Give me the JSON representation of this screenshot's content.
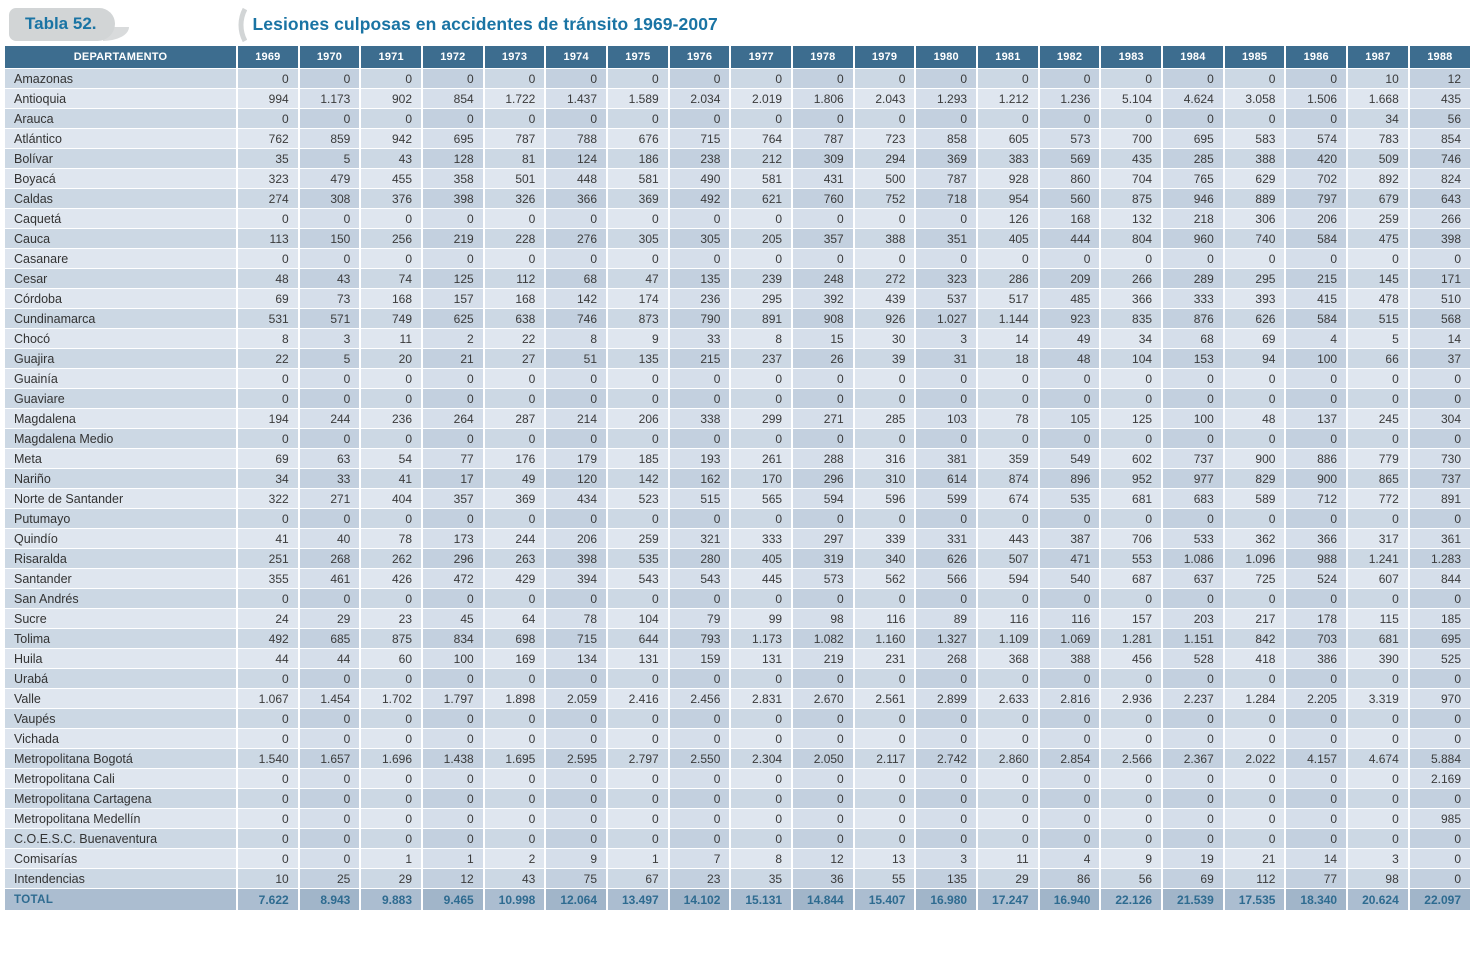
{
  "title": {
    "badge": "Tabla 52.",
    "text": "Lesiones culposas en accidentes de tránsito 1969-2007"
  },
  "colors": {
    "title_color": "#1a74a4",
    "badge_bg": "#d2d5d6",
    "header_bg": "#3d6d8f",
    "row_dark": "#ccd8e4",
    "row_dark_alt": "#c3d0df",
    "row_light": "#dfe6ef",
    "row_light_alt": "#d5deea",
    "total_bg": "#abbdd0",
    "total_bg_alt": "#a1b5c9",
    "total_text": "#2e6b90"
  },
  "table": {
    "department_header": "DEPARTAMENTO",
    "years": [
      "1969",
      "1970",
      "1971",
      "1972",
      "1973",
      "1974",
      "1975",
      "1976",
      "1977",
      "1978",
      "1979",
      "1980",
      "1981",
      "1982",
      "1983",
      "1984",
      "1985",
      "1986",
      "1987",
      "1988"
    ],
    "rows": [
      {
        "name": "Amazonas",
        "values": [
          "0",
          "0",
          "0",
          "0",
          "0",
          "0",
          "0",
          "0",
          "0",
          "0",
          "0",
          "0",
          "0",
          "0",
          "0",
          "0",
          "0",
          "0",
          "10",
          "12"
        ]
      },
      {
        "name": "Antioquia",
        "values": [
          "994",
          "1.173",
          "902",
          "854",
          "1.722",
          "1.437",
          "1.589",
          "2.034",
          "2.019",
          "1.806",
          "2.043",
          "1.293",
          "1.212",
          "1.236",
          "5.104",
          "4.624",
          "3.058",
          "1.506",
          "1.668",
          "435"
        ]
      },
      {
        "name": "Arauca",
        "values": [
          "0",
          "0",
          "0",
          "0",
          "0",
          "0",
          "0",
          "0",
          "0",
          "0",
          "0",
          "0",
          "0",
          "0",
          "0",
          "0",
          "0",
          "0",
          "34",
          "56"
        ]
      },
      {
        "name": "Atlántico",
        "values": [
          "762",
          "859",
          "942",
          "695",
          "787",
          "788",
          "676",
          "715",
          "764",
          "787",
          "723",
          "858",
          "605",
          "573",
          "700",
          "695",
          "583",
          "574",
          "783",
          "854"
        ]
      },
      {
        "name": "Bolívar",
        "values": [
          "35",
          "5",
          "43",
          "128",
          "81",
          "124",
          "186",
          "238",
          "212",
          "309",
          "294",
          "369",
          "383",
          "569",
          "435",
          "285",
          "388",
          "420",
          "509",
          "746"
        ]
      },
      {
        "name": "Boyacá",
        "values": [
          "323",
          "479",
          "455",
          "358",
          "501",
          "448",
          "581",
          "490",
          "581",
          "431",
          "500",
          "787",
          "928",
          "860",
          "704",
          "765",
          "629",
          "702",
          "892",
          "824"
        ]
      },
      {
        "name": "Caldas",
        "values": [
          "274",
          "308",
          "376",
          "398",
          "326",
          "366",
          "369",
          "492",
          "621",
          "760",
          "752",
          "718",
          "954",
          "560",
          "875",
          "946",
          "889",
          "797",
          "679",
          "643"
        ]
      },
      {
        "name": "Caquetá",
        "values": [
          "0",
          "0",
          "0",
          "0",
          "0",
          "0",
          "0",
          "0",
          "0",
          "0",
          "0",
          "0",
          "126",
          "168",
          "132",
          "218",
          "306",
          "206",
          "259",
          "266"
        ]
      },
      {
        "name": "Cauca",
        "values": [
          "113",
          "150",
          "256",
          "219",
          "228",
          "276",
          "305",
          "305",
          "205",
          "357",
          "388",
          "351",
          "405",
          "444",
          "804",
          "960",
          "740",
          "584",
          "475",
          "398"
        ]
      },
      {
        "name": "Casanare",
        "values": [
          "0",
          "0",
          "0",
          "0",
          "0",
          "0",
          "0",
          "0",
          "0",
          "0",
          "0",
          "0",
          "0",
          "0",
          "0",
          "0",
          "0",
          "0",
          "0",
          "0"
        ]
      },
      {
        "name": "Cesar",
        "values": [
          "48",
          "43",
          "74",
          "125",
          "112",
          "68",
          "47",
          "135",
          "239",
          "248",
          "272",
          "323",
          "286",
          "209",
          "266",
          "289",
          "295",
          "215",
          "145",
          "171"
        ]
      },
      {
        "name": "Córdoba",
        "values": [
          "69",
          "73",
          "168",
          "157",
          "168",
          "142",
          "174",
          "236",
          "295",
          "392",
          "439",
          "537",
          "517",
          "485",
          "366",
          "333",
          "393",
          "415",
          "478",
          "510"
        ]
      },
      {
        "name": "Cundinamarca",
        "values": [
          "531",
          "571",
          "749",
          "625",
          "638",
          "746",
          "873",
          "790",
          "891",
          "908",
          "926",
          "1.027",
          "1.144",
          "923",
          "835",
          "876",
          "626",
          "584",
          "515",
          "568"
        ]
      },
      {
        "name": "Chocó",
        "values": [
          "8",
          "3",
          "11",
          "2",
          "22",
          "8",
          "9",
          "33",
          "8",
          "15",
          "30",
          "3",
          "14",
          "49",
          "34",
          "68",
          "69",
          "4",
          "5",
          "14"
        ]
      },
      {
        "name": "Guajira",
        "values": [
          "22",
          "5",
          "20",
          "21",
          "27",
          "51",
          "135",
          "215",
          "237",
          "26",
          "39",
          "31",
          "18",
          "48",
          "104",
          "153",
          "94",
          "100",
          "66",
          "37"
        ]
      },
      {
        "name": "Guainía",
        "values": [
          "0",
          "0",
          "0",
          "0",
          "0",
          "0",
          "0",
          "0",
          "0",
          "0",
          "0",
          "0",
          "0",
          "0",
          "0",
          "0",
          "0",
          "0",
          "0",
          "0"
        ]
      },
      {
        "name": "Guaviare",
        "values": [
          "0",
          "0",
          "0",
          "0",
          "0",
          "0",
          "0",
          "0",
          "0",
          "0",
          "0",
          "0",
          "0",
          "0",
          "0",
          "0",
          "0",
          "0",
          "0",
          "0"
        ]
      },
      {
        "name": "Magdalena",
        "values": [
          "194",
          "244",
          "236",
          "264",
          "287",
          "214",
          "206",
          "338",
          "299",
          "271",
          "285",
          "103",
          "78",
          "105",
          "125",
          "100",
          "48",
          "137",
          "245",
          "304"
        ]
      },
      {
        "name": "Magdalena Medio",
        "values": [
          "0",
          "0",
          "0",
          "0",
          "0",
          "0",
          "0",
          "0",
          "0",
          "0",
          "0",
          "0",
          "0",
          "0",
          "0",
          "0",
          "0",
          "0",
          "0",
          "0"
        ]
      },
      {
        "name": "Meta",
        "values": [
          "69",
          "63",
          "54",
          "77",
          "176",
          "179",
          "185",
          "193",
          "261",
          "288",
          "316",
          "381",
          "359",
          "549",
          "602",
          "737",
          "900",
          "886",
          "779",
          "730"
        ]
      },
      {
        "name": "Nariño",
        "values": [
          "34",
          "33",
          "41",
          "17",
          "49",
          "120",
          "142",
          "162",
          "170",
          "296",
          "310",
          "614",
          "874",
          "896",
          "952",
          "977",
          "829",
          "900",
          "865",
          "737"
        ]
      },
      {
        "name": "Norte de Santander",
        "values": [
          "322",
          "271",
          "404",
          "357",
          "369",
          "434",
          "523",
          "515",
          "565",
          "594",
          "596",
          "599",
          "674",
          "535",
          "681",
          "683",
          "589",
          "712",
          "772",
          "891"
        ]
      },
      {
        "name": "Putumayo",
        "values": [
          "0",
          "0",
          "0",
          "0",
          "0",
          "0",
          "0",
          "0",
          "0",
          "0",
          "0",
          "0",
          "0",
          "0",
          "0",
          "0",
          "0",
          "0",
          "0",
          "0"
        ]
      },
      {
        "name": "Quindío",
        "values": [
          "41",
          "40",
          "78",
          "173",
          "244",
          "206",
          "259",
          "321",
          "333",
          "297",
          "339",
          "331",
          "443",
          "387",
          "706",
          "533",
          "362",
          "366",
          "317",
          "361"
        ]
      },
      {
        "name": "Risaralda",
        "values": [
          "251",
          "268",
          "262",
          "296",
          "263",
          "398",
          "535",
          "280",
          "405",
          "319",
          "340",
          "626",
          "507",
          "471",
          "553",
          "1.086",
          "1.096",
          "988",
          "1.241",
          "1.283"
        ]
      },
      {
        "name": "Santander",
        "values": [
          "355",
          "461",
          "426",
          "472",
          "429",
          "394",
          "543",
          "543",
          "445",
          "573",
          "562",
          "566",
          "594",
          "540",
          "687",
          "637",
          "725",
          "524",
          "607",
          "844"
        ]
      },
      {
        "name": "San Andrés",
        "values": [
          "0",
          "0",
          "0",
          "0",
          "0",
          "0",
          "0",
          "0",
          "0",
          "0",
          "0",
          "0",
          "0",
          "0",
          "0",
          "0",
          "0",
          "0",
          "0",
          "0"
        ]
      },
      {
        "name": "Sucre",
        "values": [
          "24",
          "29",
          "23",
          "45",
          "64",
          "78",
          "104",
          "79",
          "99",
          "98",
          "116",
          "89",
          "116",
          "116",
          "157",
          "203",
          "217",
          "178",
          "115",
          "185"
        ]
      },
      {
        "name": "Tolima",
        "values": [
          "492",
          "685",
          "875",
          "834",
          "698",
          "715",
          "644",
          "793",
          "1.173",
          "1.082",
          "1.160",
          "1.327",
          "1.109",
          "1.069",
          "1.281",
          "1.151",
          "842",
          "703",
          "681",
          "695"
        ]
      },
      {
        "name": "Huila",
        "values": [
          "44",
          "44",
          "60",
          "100",
          "169",
          "134",
          "131",
          "159",
          "131",
          "219",
          "231",
          "268",
          "368",
          "388",
          "456",
          "528",
          "418",
          "386",
          "390",
          "525"
        ]
      },
      {
        "name": "Urabá",
        "values": [
          "0",
          "0",
          "0",
          "0",
          "0",
          "0",
          "0",
          "0",
          "0",
          "0",
          "0",
          "0",
          "0",
          "0",
          "0",
          "0",
          "0",
          "0",
          "0",
          "0"
        ]
      },
      {
        "name": "Valle",
        "values": [
          "1.067",
          "1.454",
          "1.702",
          "1.797",
          "1.898",
          "2.059",
          "2.416",
          "2.456",
          "2.831",
          "2.670",
          "2.561",
          "2.899",
          "2.633",
          "2.816",
          "2.936",
          "2.237",
          "1.284",
          "2.205",
          "3.319",
          "970"
        ]
      },
      {
        "name": "Vaupés",
        "values": [
          "0",
          "0",
          "0",
          "0",
          "0",
          "0",
          "0",
          "0",
          "0",
          "0",
          "0",
          "0",
          "0",
          "0",
          "0",
          "0",
          "0",
          "0",
          "0",
          "0"
        ]
      },
      {
        "name": "Vichada",
        "values": [
          "0",
          "0",
          "0",
          "0",
          "0",
          "0",
          "0",
          "0",
          "0",
          "0",
          "0",
          "0",
          "0",
          "0",
          "0",
          "0",
          "0",
          "0",
          "0",
          "0"
        ]
      },
      {
        "name": "Metropolitana Bogotá",
        "values": [
          "1.540",
          "1.657",
          "1.696",
          "1.438",
          "1.695",
          "2.595",
          "2.797",
          "2.550",
          "2.304",
          "2.050",
          "2.117",
          "2.742",
          "2.860",
          "2.854",
          "2.566",
          "2.367",
          "2.022",
          "4.157",
          "4.674",
          "5.884"
        ]
      },
      {
        "name": "Metropolitana Cali",
        "values": [
          "0",
          "0",
          "0",
          "0",
          "0",
          "0",
          "0",
          "0",
          "0",
          "0",
          "0",
          "0",
          "0",
          "0",
          "0",
          "0",
          "0",
          "0",
          "0",
          "2.169"
        ]
      },
      {
        "name": "Metropolitana Cartagena",
        "values": [
          "0",
          "0",
          "0",
          "0",
          "0",
          "0",
          "0",
          "0",
          "0",
          "0",
          "0",
          "0",
          "0",
          "0",
          "0",
          "0",
          "0",
          "0",
          "0",
          "0"
        ]
      },
      {
        "name": "Metropolitana Medellín",
        "values": [
          "0",
          "0",
          "0",
          "0",
          "0",
          "0",
          "0",
          "0",
          "0",
          "0",
          "0",
          "0",
          "0",
          "0",
          "0",
          "0",
          "0",
          "0",
          "0",
          "985"
        ]
      },
      {
        "name": "C.O.E.S.C. Buenaventura",
        "values": [
          "0",
          "0",
          "0",
          "0",
          "0",
          "0",
          "0",
          "0",
          "0",
          "0",
          "0",
          "0",
          "0",
          "0",
          "0",
          "0",
          "0",
          "0",
          "0",
          "0"
        ]
      },
      {
        "name": "Comisarías",
        "values": [
          "0",
          "0",
          "1",
          "1",
          "2",
          "9",
          "1",
          "7",
          "8",
          "12",
          "13",
          "3",
          "11",
          "4",
          "9",
          "19",
          "21",
          "14",
          "3",
          "0"
        ]
      },
      {
        "name": "Intendencias",
        "values": [
          "10",
          "25",
          "29",
          "12",
          "43",
          "75",
          "67",
          "23",
          "35",
          "36",
          "55",
          "135",
          "29",
          "86",
          "56",
          "69",
          "112",
          "77",
          "98",
          "0"
        ]
      }
    ],
    "total": {
      "label": "TOTAL",
      "values": [
        "7.622",
        "8.943",
        "9.883",
        "9.465",
        "10.998",
        "12.064",
        "13.497",
        "14.102",
        "15.131",
        "14.844",
        "15.407",
        "16.980",
        "17.247",
        "16.940",
        "22.126",
        "21.539",
        "17.535",
        "18.340",
        "20.624",
        "22.097"
      ]
    }
  }
}
